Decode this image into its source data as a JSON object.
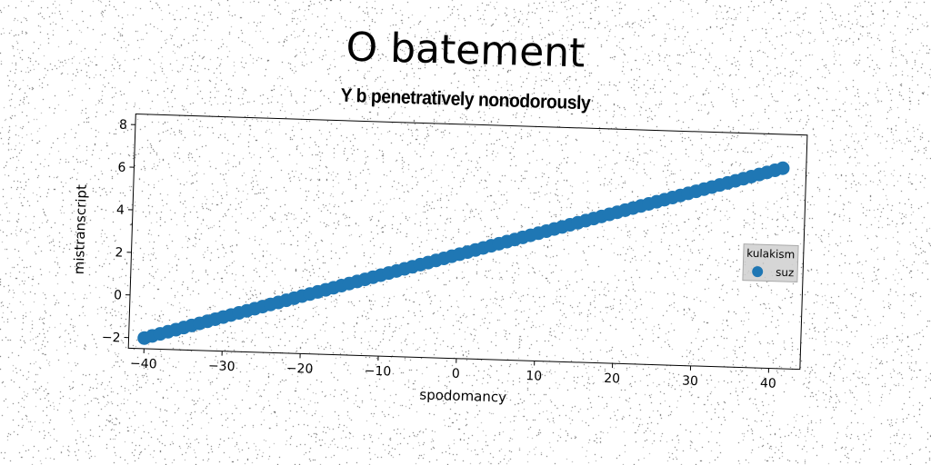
{
  "chart_data": {
    "type": "scatter",
    "title": "O batement",
    "subtitle": "Y b penetratively nonodorously",
    "xlabel": "spodomancy",
    "ylabel": "mistranscript",
    "xlim": [
      -42,
      44
    ],
    "ylim": [
      -2.5,
      8.5
    ],
    "xticks": [
      -40,
      -30,
      -20,
      -10,
      0,
      10,
      20,
      30,
      40
    ],
    "yticks": [
      -2,
      0,
      2,
      4,
      6,
      8
    ],
    "grid": false,
    "legend": {
      "title": "kulakism",
      "placement": "right",
      "entries": [
        "suz"
      ]
    },
    "series": [
      {
        "name": "suz",
        "color": "#1f77b4",
        "x_start": -40,
        "x_end": 41,
        "x_step": 1,
        "slope": 0.11,
        "intercept": 2.4
      }
    ]
  }
}
